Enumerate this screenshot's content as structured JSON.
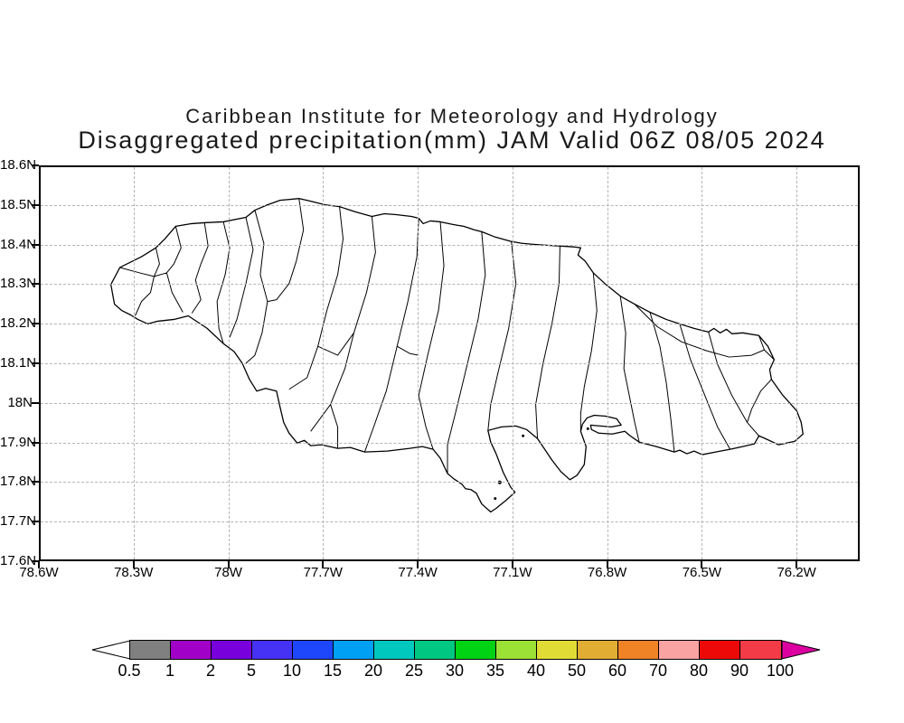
{
  "title": {
    "line1": "Caribbean Institute for Meteorology and Hydrology",
    "line2": "Disaggregated precipitation(mm) JAM Valid 06Z 08/05 2024"
  },
  "map": {
    "lat_ticks": [
      "18.6N",
      "18.5N",
      "18.4N",
      "18.3N",
      "18.2N",
      "18.1N",
      "18N",
      "17.9N",
      "17.8N",
      "17.7N",
      "17.6N"
    ],
    "lon_ticks": [
      "78.6W",
      "78.3W",
      "78W",
      "77.7W",
      "77.4W",
      "77.1W",
      "76.8W",
      "76.5W",
      "76.2W"
    ],
    "grid_color": "#b4b4b4",
    "coastline_color": "#000000",
    "region_label": "Jamaica watersheds"
  },
  "colorbar": {
    "tick_labels": [
      "0.5",
      "1",
      "2",
      "5",
      "10",
      "15",
      "20",
      "25",
      "30",
      "35",
      "40",
      "50",
      "60",
      "70",
      "80",
      "90",
      "100"
    ],
    "segment_colors": [
      "#808080",
      "#a000c8",
      "#7800dc",
      "#4632f5",
      "#1e46fa",
      "#00a0f5",
      "#00c8be",
      "#00c882",
      "#00d214",
      "#9be136",
      "#e1dc35",
      "#e1ad33",
      "#ef8326",
      "#faa3a3",
      "#ee0909",
      "#f23b46"
    ],
    "left_arrow_color": "#ffffff",
    "right_arrow_color": "#dc00a0",
    "outline_color": "#000000"
  },
  "chart_data": {
    "type": "map",
    "title": "Disaggregated precipitation(mm) JAM Valid 06Z 08/05 2024",
    "institution": "Caribbean Institute for Meteorology and Hydrology",
    "region": "JAM (Jamaica)",
    "valid_time": "06Z 08/05 2024",
    "lat_axis": {
      "ticks": [
        "18.6N",
        "18.5N",
        "18.4N",
        "18.3N",
        "18.2N",
        "18.1N",
        "18N",
        "17.9N",
        "17.8N",
        "17.7N",
        "17.6N"
      ],
      "range": [
        "17.6N",
        "18.6N"
      ]
    },
    "lon_axis": {
      "ticks": [
        "78.6W",
        "78.3W",
        "78W",
        "77.7W",
        "77.4W",
        "77.1W",
        "76.8W",
        "76.5W",
        "76.2W"
      ],
      "range": [
        "78.6W",
        "76.2W"
      ]
    },
    "grid": true,
    "legend_position": "bottom",
    "legend_scale_mm": [
      0.5,
      1,
      2,
      5,
      10,
      15,
      20,
      25,
      30,
      35,
      40,
      50,
      60,
      70,
      80,
      90,
      100
    ],
    "precipitation_shading_visible": false
  }
}
